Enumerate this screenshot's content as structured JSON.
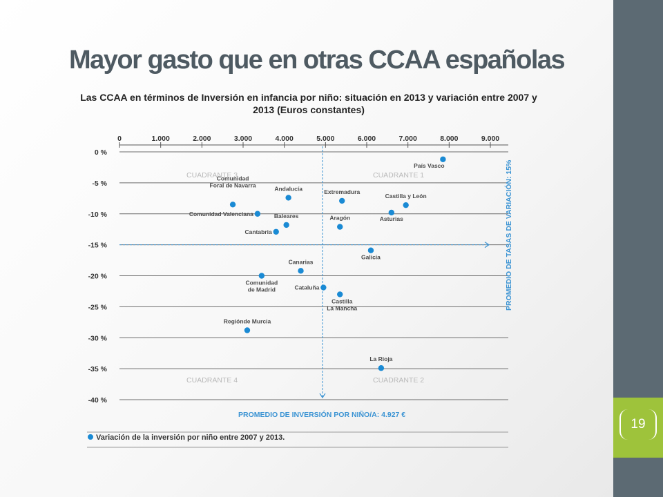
{
  "slide": {
    "title": "Mayor gasto que en otras CCAA españolas",
    "page_number": "19",
    "colors": {
      "sidebar": "#5c6a73",
      "accent": "#9ec33b",
      "point": "#1a8ad4",
      "annotation": "#3a93d3"
    }
  },
  "chart_data": {
    "type": "scatter",
    "title": "Las CCAA en términos de Inversión en infancia por niño: situación en 2013 y variación entre 2007 y 2013 (Euros constantes)",
    "x_ticks": [
      "0",
      "1.000",
      "2.000",
      "3.000",
      "4.000",
      "5.000",
      "6.000",
      "7.000",
      "8.000",
      "9.000"
    ],
    "y_ticks": [
      "0 %",
      "-5 %",
      "-10 %",
      "-15 %",
      "-20 %",
      "-25 %",
      "-30 %",
      "-35 %",
      "-40 %"
    ],
    "xlim": [
      0,
      9000
    ],
    "ylim": [
      -40,
      0
    ],
    "grid": "horizontal",
    "quadrants": [
      "CUADRANTE 3",
      "CUADRANTE 1",
      "CUADRANTE 4",
      "CUADRANTE 2"
    ],
    "reference_lines": {
      "x_label": "PROMEDIO DE INVERSIÓN POR NIÑO/A: 4.927 €",
      "x_value": 4927,
      "y_label": "PROMEDIO DE TASAS DE VARIACIÓN: 15%",
      "y_value": -15
    },
    "legend": "Variación de la inversión por niño entre 2007 y 2013.",
    "points": [
      {
        "name": "País Vasco",
        "lines": [
          "País Vasco"
        ],
        "x": 7850,
        "y": -1.2
      },
      {
        "name": "Comunidad Foral de Navarra",
        "lines": [
          "Comunidad",
          "Foral de Navarra"
        ],
        "x": 2750,
        "y": -8.5
      },
      {
        "name": "Andalucía",
        "lines": [
          "Andalucía"
        ],
        "x": 4100,
        "y": -7.4
      },
      {
        "name": "Extremadura",
        "lines": [
          "Extremadura"
        ],
        "x": 5400,
        "y": -7.9
      },
      {
        "name": "Castilla y León",
        "lines": [
          "Castilla y León"
        ],
        "x": 6950,
        "y": -8.6
      },
      {
        "name": "Asturias",
        "lines": [
          "Asturias"
        ],
        "x": 6600,
        "y": -9.8
      },
      {
        "name": "Comunidad Valenciana",
        "lines": [
          "Comunidad Valenciana"
        ],
        "x": 3350,
        "y": -10.0
      },
      {
        "name": "Baleares",
        "lines": [
          "Baleares"
        ],
        "x": 4050,
        "y": -11.8
      },
      {
        "name": "Aragón",
        "lines": [
          "Aragón"
        ],
        "x": 5350,
        "y": -12.1
      },
      {
        "name": "Cantabria",
        "lines": [
          "Cantabria"
        ],
        "x": 3800,
        "y": -12.9
      },
      {
        "name": "Galicia",
        "lines": [
          "Galicia"
        ],
        "x": 6100,
        "y": -15.9
      },
      {
        "name": "Canarias",
        "lines": [
          "Canarias"
        ],
        "x": 4400,
        "y": -19.2
      },
      {
        "name": "Comunidad de Madrid",
        "lines": [
          "Comunidad",
          "de Madrid"
        ],
        "x": 3450,
        "y": -20.0
      },
      {
        "name": "Cataluña",
        "lines": [
          "Cataluña"
        ],
        "x": 4950,
        "y": -21.9
      },
      {
        "name": "Castilla La Mancha",
        "lines": [
          "Castilla",
          "La Mancha"
        ],
        "x": 5350,
        "y": -23.0
      },
      {
        "name": "Región de Murcia",
        "lines": [
          "Regiónde Murcia"
        ],
        "x": 3100,
        "y": -28.8
      },
      {
        "name": "La Rioja",
        "lines": [
          "La Rioja"
        ],
        "x": 6350,
        "y": -34.9
      }
    ]
  }
}
